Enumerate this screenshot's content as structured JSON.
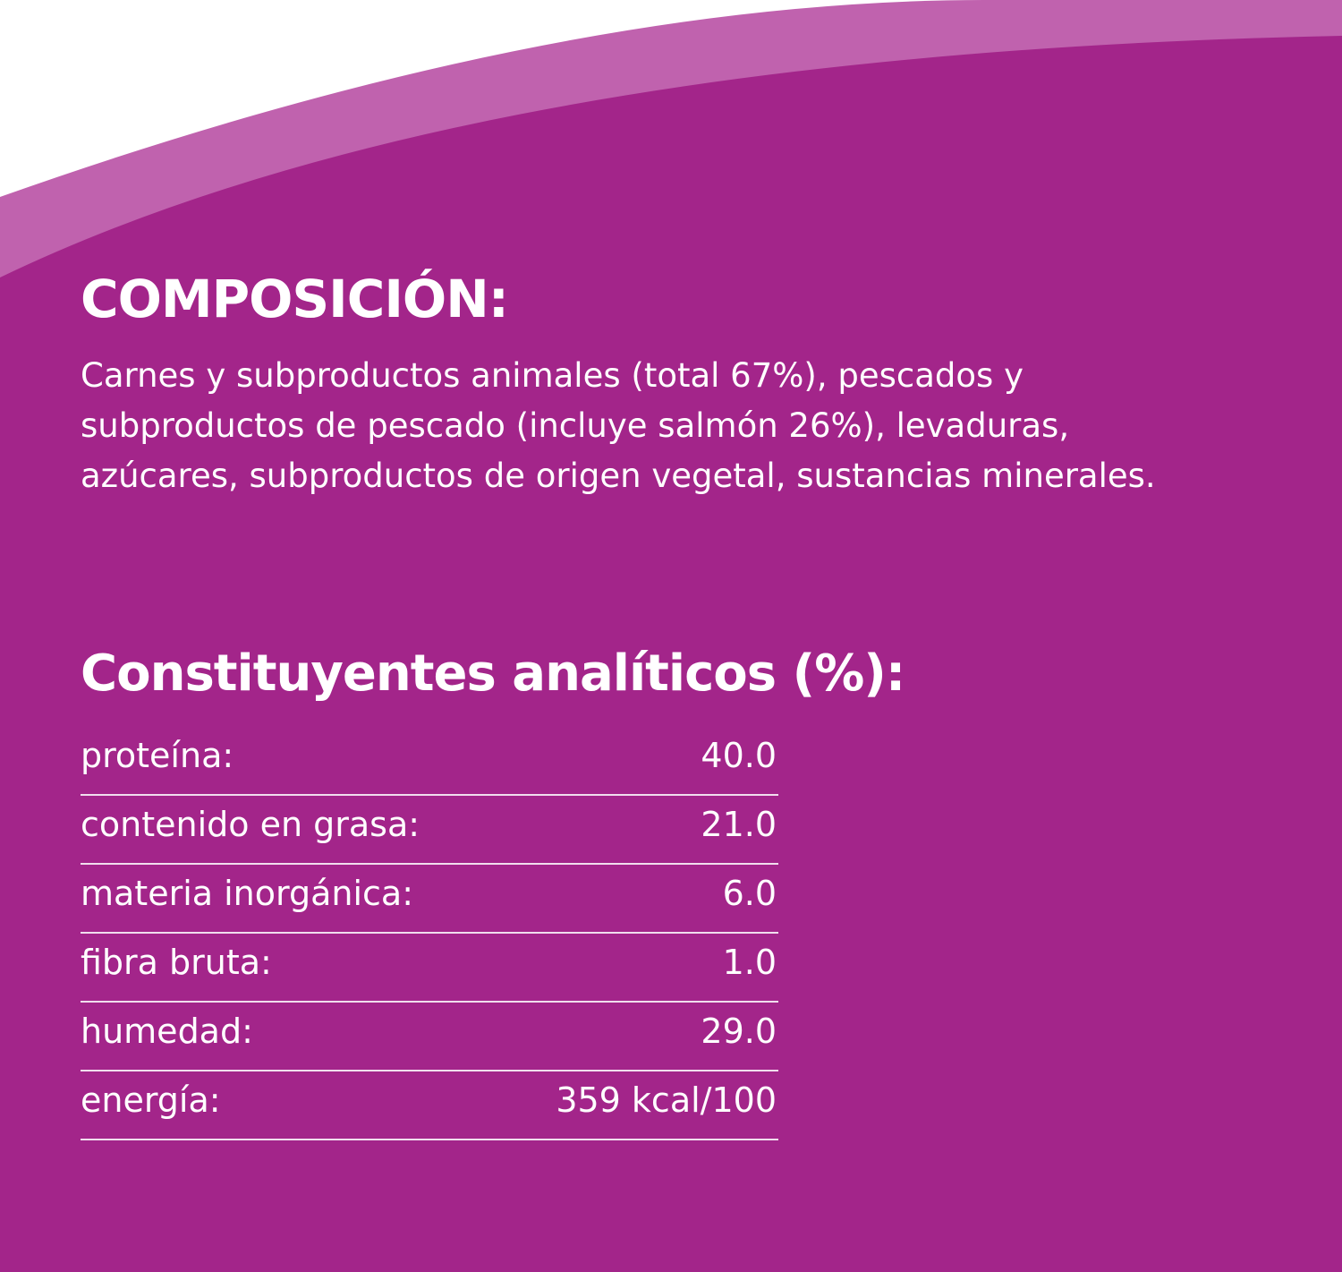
{
  "composition": {
    "title": "COMPOSICIÓN:",
    "lines": [
      "Carnes y subproductos animales (total 67%), pescados y",
      "subproductos de pescado (incluye salmón 26%), levaduras,",
      "azúcares, subproductos de origen vegetal, sustancias minerales."
    ]
  },
  "analysis": {
    "title": "Constituyentes analíticos (%):",
    "rows": [
      [
        "proteína:",
        "40.0"
      ],
      [
        "contenido en grasa:",
        "21.0"
      ],
      [
        "materia inorgánica:",
        "6.0"
      ],
      [
        "fibra bruta:",
        "1.0"
      ],
      [
        "humedad:",
        "29.0"
      ],
      [
        "energía:",
        "359 kcal/100"
      ]
    ]
  }
}
